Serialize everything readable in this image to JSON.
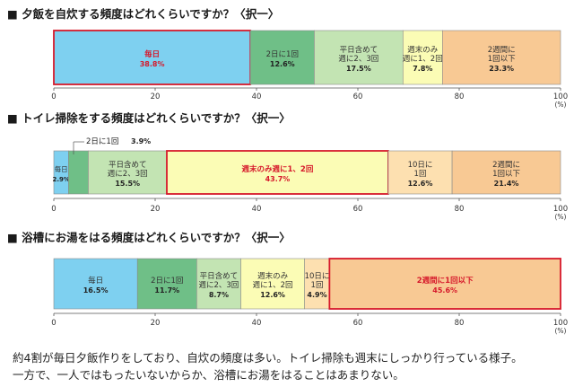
{
  "chart_data": [
    {
      "type": "bar",
      "orientation": "horizontal-stacked",
      "title": "■ 夕飯を自炊する頻度はどれくらいですか？〈択一〉",
      "xlim": [
        0,
        100
      ],
      "unit": "(%)",
      "ticks": [
        "0",
        "20",
        "40",
        "60",
        "80",
        "100"
      ],
      "series": [
        {
          "label": "毎日",
          "value": 38.8,
          "value_label": "38.8%",
          "color": "#7ed0f0",
          "highlight": true
        },
        {
          "label": "2日に1回",
          "value": 12.6,
          "value_label": "12.6%",
          "color": "#6fbf87",
          "highlight": false
        },
        {
          "label": "平日含めて\n週に2、3回",
          "value": 17.5,
          "value_label": "17.5%",
          "color": "#c3e4b3",
          "highlight": false
        },
        {
          "label": "週末のみ\n週に1、2回",
          "value": 7.8,
          "value_label": "7.8%",
          "color": "#fbfcb5",
          "highlight": false
        },
        {
          "label": "2週間に\n1回以下",
          "value": 23.3,
          "value_label": "23.3%",
          "color": "#f8c994",
          "highlight": false
        }
      ]
    },
    {
      "type": "bar",
      "orientation": "horizontal-stacked",
      "title": "■ トイレ掃除をする頻度はどれくらいですか？〈択一〉",
      "xlim": [
        0,
        100
      ],
      "unit": "(%)",
      "ticks": [
        "0",
        "20",
        "40",
        "60",
        "80",
        "100"
      ],
      "series": [
        {
          "label": "毎日",
          "value": 2.9,
          "value_label": "2.9%",
          "color": "#7ed0f0",
          "highlight": false
        },
        {
          "label": "2日に1回",
          "value": 3.9,
          "value_label": "3.9%",
          "color": "#6fbf87",
          "highlight": false
        },
        {
          "label": "平日含めて\n週に2、3回",
          "value": 15.5,
          "value_label": "15.5%",
          "color": "#c3e4b3",
          "highlight": false
        },
        {
          "label": "週末のみ週に1、2回",
          "value": 43.7,
          "value_label": "43.7%",
          "color": "#fbfcb5",
          "highlight": true
        },
        {
          "label": "10日に\n1回",
          "value": 12.6,
          "value_label": "12.6%",
          "color": "#fde0b0",
          "highlight": false
        },
        {
          "label": "2週間に\n1回以下",
          "value": 21.4,
          "value_label": "21.4%",
          "color": "#f8c994",
          "highlight": false
        }
      ]
    },
    {
      "type": "bar",
      "orientation": "horizontal-stacked",
      "title": "■ 浴槽にお湯をはる頻度はどれくらいですか？〈択一〉",
      "xlim": [
        0,
        100
      ],
      "unit": "(%)",
      "ticks": [
        "0",
        "20",
        "40",
        "60",
        "80",
        "100"
      ],
      "series": [
        {
          "label": "毎日",
          "value": 16.5,
          "value_label": "16.5%",
          "color": "#7ed0f0",
          "highlight": false
        },
        {
          "label": "2日に1回",
          "value": 11.7,
          "value_label": "11.7%",
          "color": "#6fbf87",
          "highlight": false
        },
        {
          "label": "平日含めて\n週に2、3回",
          "value": 8.7,
          "value_label": "8.7%",
          "color": "#c3e4b3",
          "highlight": false
        },
        {
          "label": "週末のみ\n週に1、2回",
          "value": 12.6,
          "value_label": "12.6%",
          "color": "#fbfcb5",
          "highlight": false
        },
        {
          "label": "10日に\n1回",
          "value": 4.9,
          "value_label": "4.9%",
          "color": "#fde0b0",
          "highlight": false
        },
        {
          "label": "2週間に1回以下",
          "value": 45.6,
          "value_label": "45.6%",
          "color": "#f8c994",
          "highlight": true
        }
      ]
    }
  ],
  "caption": {
    "line1": "約4割が毎日夕飯作りをしており、自炊の頻度は多い。トイレ掃除も週末にしっかり行っている様子。",
    "line2": "一方で、一人ではもったいないからか、浴槽にお湯をはることはあまりない。"
  }
}
